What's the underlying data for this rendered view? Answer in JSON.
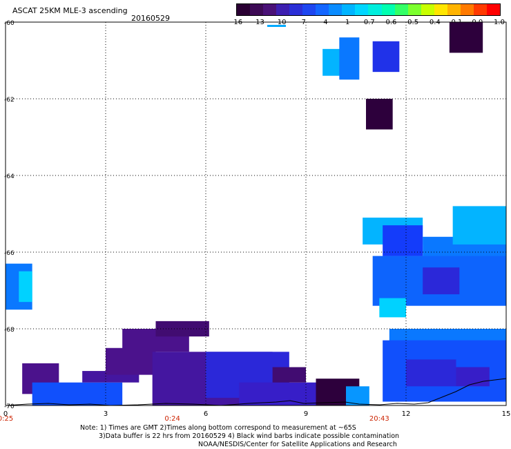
{
  "header": {
    "title": "ASCAT 25KM MLE-3 ascending",
    "date": "20160529"
  },
  "colorbar": {
    "labels": [
      "-16",
      "-13",
      "-10",
      "-7",
      "-4",
      "-1",
      "-0.7",
      "-0.6",
      "-0.5",
      "-0.4",
      "-0.1",
      "0.0",
      "1.0"
    ],
    "colors": [
      "#2a0033",
      "#3d0a55",
      "#4a1177",
      "#3d1fb0",
      "#2b2fd6",
      "#1e46f0",
      "#1466ff",
      "#0a8cff",
      "#00b4ff",
      "#00d6ff",
      "#00eedd",
      "#00ffb0",
      "#33ff66",
      "#7cff2e",
      "#c8ff00",
      "#ffe600",
      "#ffb400",
      "#ff7a00",
      "#ff3a00",
      "#ff0000"
    ]
  },
  "notes": {
    "line1": "Note: 1) Times are GMT 2)Times along bottom correspond to measurement at ~65S",
    "line2": "3)Data buffer is 22 hrs from 20160529 4) Black wind barbs indicate possible contamination",
    "line3": "NOAA/NESDIS/Center for Satellite Applications and Research"
  },
  "chart_data": {
    "type": "heatmap",
    "title": "ASCAT 25KM MLE-3 ascending",
    "date": "20160529",
    "xlim": [
      0,
      15
    ],
    "ylim": [
      -70,
      -60
    ],
    "x_ticks": [
      "0",
      "3",
      "6",
      "9",
      "12",
      "15"
    ],
    "y_ticks": [
      "-60",
      "-62",
      "-64",
      "-66",
      "-68",
      "-70"
    ],
    "time_labels": [
      {
        "x": 0,
        "label": "0:25"
      },
      {
        "x": 5,
        "label": "0:24"
      },
      {
        "x": 11.2,
        "label": "20:43"
      }
    ],
    "grid": true,
    "colorbar_levels": [
      -16,
      -13,
      -10,
      -7,
      -4,
      -1,
      -0.7,
      -0.6,
      -0.5,
      -0.4,
      -0.1,
      0.0,
      1.0
    ],
    "regions": [
      {
        "x": [
          13.3,
          14.3
        ],
        "y": [
          -60.8,
          -60.0
        ],
        "value": -16
      },
      {
        "x": [
          9.5,
          10.3
        ],
        "y": [
          -61.4,
          -60.7
        ],
        "value": -2
      },
      {
        "x": [
          10.0,
          10.6
        ],
        "y": [
          -61.5,
          -60.4
        ],
        "value": -4
      },
      {
        "x": [
          11.0,
          11.8
        ],
        "y": [
          -61.3,
          -60.5
        ],
        "value": -8
      },
      {
        "x": [
          10.8,
          11.6
        ],
        "y": [
          -62.8,
          -62.0
        ],
        "value": -16
      },
      {
        "x": [
          0.0,
          0.8
        ],
        "y": [
          -67.5,
          -66.3
        ],
        "value": -4
      },
      {
        "x": [
          0.4,
          0.8
        ],
        "y": [
          -67.3,
          -66.5
        ],
        "value": -1
      },
      {
        "x": [
          10.7,
          12.5
        ],
        "y": [
          -65.8,
          -65.1
        ],
        "value": -2
      },
      {
        "x": [
          11.3,
          12.5
        ],
        "y": [
          -66.1,
          -65.3
        ],
        "value": -7
      },
      {
        "x": [
          12.5,
          15.0
        ],
        "y": [
          -66.4,
          -65.6
        ],
        "value": -4
      },
      {
        "x": [
          11.0,
          15.0
        ],
        "y": [
          -67.4,
          -66.1
        ],
        "value": -5
      },
      {
        "x": [
          12.5,
          13.6
        ],
        "y": [
          -67.1,
          -66.4
        ],
        "value": -9
      },
      {
        "x": [
          13.4,
          15.0
        ],
        "y": [
          -65.8,
          -64.8
        ],
        "value": -2
      },
      {
        "x": [
          11.2,
          12.0
        ],
        "y": [
          -67.7,
          -67.2
        ],
        "value": -1
      },
      {
        "x": [
          11.5,
          15.0
        ],
        "y": [
          -68.4,
          -68.0
        ],
        "value": -4
      },
      {
        "x": [
          11.3,
          15.0
        ],
        "y": [
          -69.9,
          -68.3
        ],
        "value": -6
      },
      {
        "x": [
          12.0,
          13.5
        ],
        "y": [
          -69.5,
          -68.8
        ],
        "value": -9
      },
      {
        "x": [
          13.5,
          14.5
        ],
        "y": [
          -69.5,
          -69.0
        ],
        "value": -10
      },
      {
        "x": [
          0.5,
          1.6
        ],
        "y": [
          -69.7,
          -68.9
        ],
        "value": -13
      },
      {
        "x": [
          0.8,
          3.5
        ],
        "y": [
          -70.0,
          -69.4
        ],
        "value": -6
      },
      {
        "x": [
          2.3,
          4.0
        ],
        "y": [
          -69.4,
          -69.1
        ],
        "value": -12
      },
      {
        "x": [
          3.0,
          4.5
        ],
        "y": [
          -69.2,
          -68.5
        ],
        "value": -13
      },
      {
        "x": [
          3.5,
          5.5
        ],
        "y": [
          -68.6,
          -68.0
        ],
        "value": -13
      },
      {
        "x": [
          4.5,
          6.1
        ],
        "y": [
          -68.2,
          -67.8
        ],
        "value": -14
      },
      {
        "x": [
          4.4,
          8.0
        ],
        "y": [
          -70.0,
          -68.6
        ],
        "value": -12
      },
      {
        "x": [
          6.0,
          8.5
        ],
        "y": [
          -69.8,
          -68.6
        ],
        "value": -9
      },
      {
        "x": [
          7.0,
          9.3
        ],
        "y": [
          -70.0,
          -69.4
        ],
        "value": -10
      },
      {
        "x": [
          8.0,
          9.0
        ],
        "y": [
          -69.4,
          -69.0
        ],
        "value": -14
      },
      {
        "x": [
          9.3,
          10.6
        ],
        "y": [
          -70.0,
          -69.3
        ],
        "value": -16
      },
      {
        "x": [
          10.2,
          10.9
        ],
        "y": [
          -70.0,
          -69.5
        ],
        "value": -3
      }
    ]
  }
}
